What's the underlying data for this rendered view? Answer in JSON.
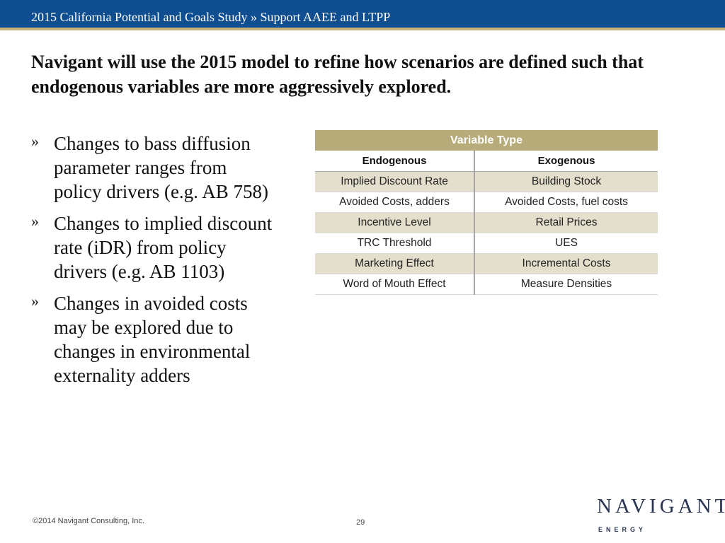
{
  "header": {
    "breadcrumb": "2015 California Potential and Goals Study » Support AAEE and LTPP"
  },
  "headline": "Navigant will use the 2015 model to refine how scenarios are defined such that endogenous variables are more aggressively explored.",
  "bullets": [
    "Changes to bass diffusion parameter ranges from policy drivers (e.g. AB 758)",
    "Changes to implied discount rate (iDR) from policy drivers (e.g. AB 1103)",
    "Changes in avoided costs may be explored due to changes in environmental externality adders"
  ],
  "bullet_glyph": "»",
  "table": {
    "title": "Variable Type",
    "columns": [
      "Endogenous",
      "Exogenous"
    ],
    "rows": [
      [
        "Implied Discount Rate",
        "Building Stock"
      ],
      [
        "Avoided Costs, adders",
        "Avoided Costs,  fuel costs"
      ],
      [
        "Incentive Level",
        "Retail Prices"
      ],
      [
        "TRC Threshold",
        "UES"
      ],
      [
        "Marketing Effect",
        "Incremental Costs"
      ],
      [
        "Word of Mouth Effect",
        "Measure Densities"
      ]
    ]
  },
  "footer": {
    "copyright": "©2014 Navigant Consulting, Inc.",
    "page_number": "29"
  },
  "logo": {
    "word": "NAVIGANT",
    "sub": "ENERGY"
  },
  "colors": {
    "topbar": "#0f4f91",
    "accent_gold": "#c8b27a",
    "table_title_bg": "#b7ab79",
    "table_shade": "#e4dfcc",
    "logo": "#2a3552"
  }
}
